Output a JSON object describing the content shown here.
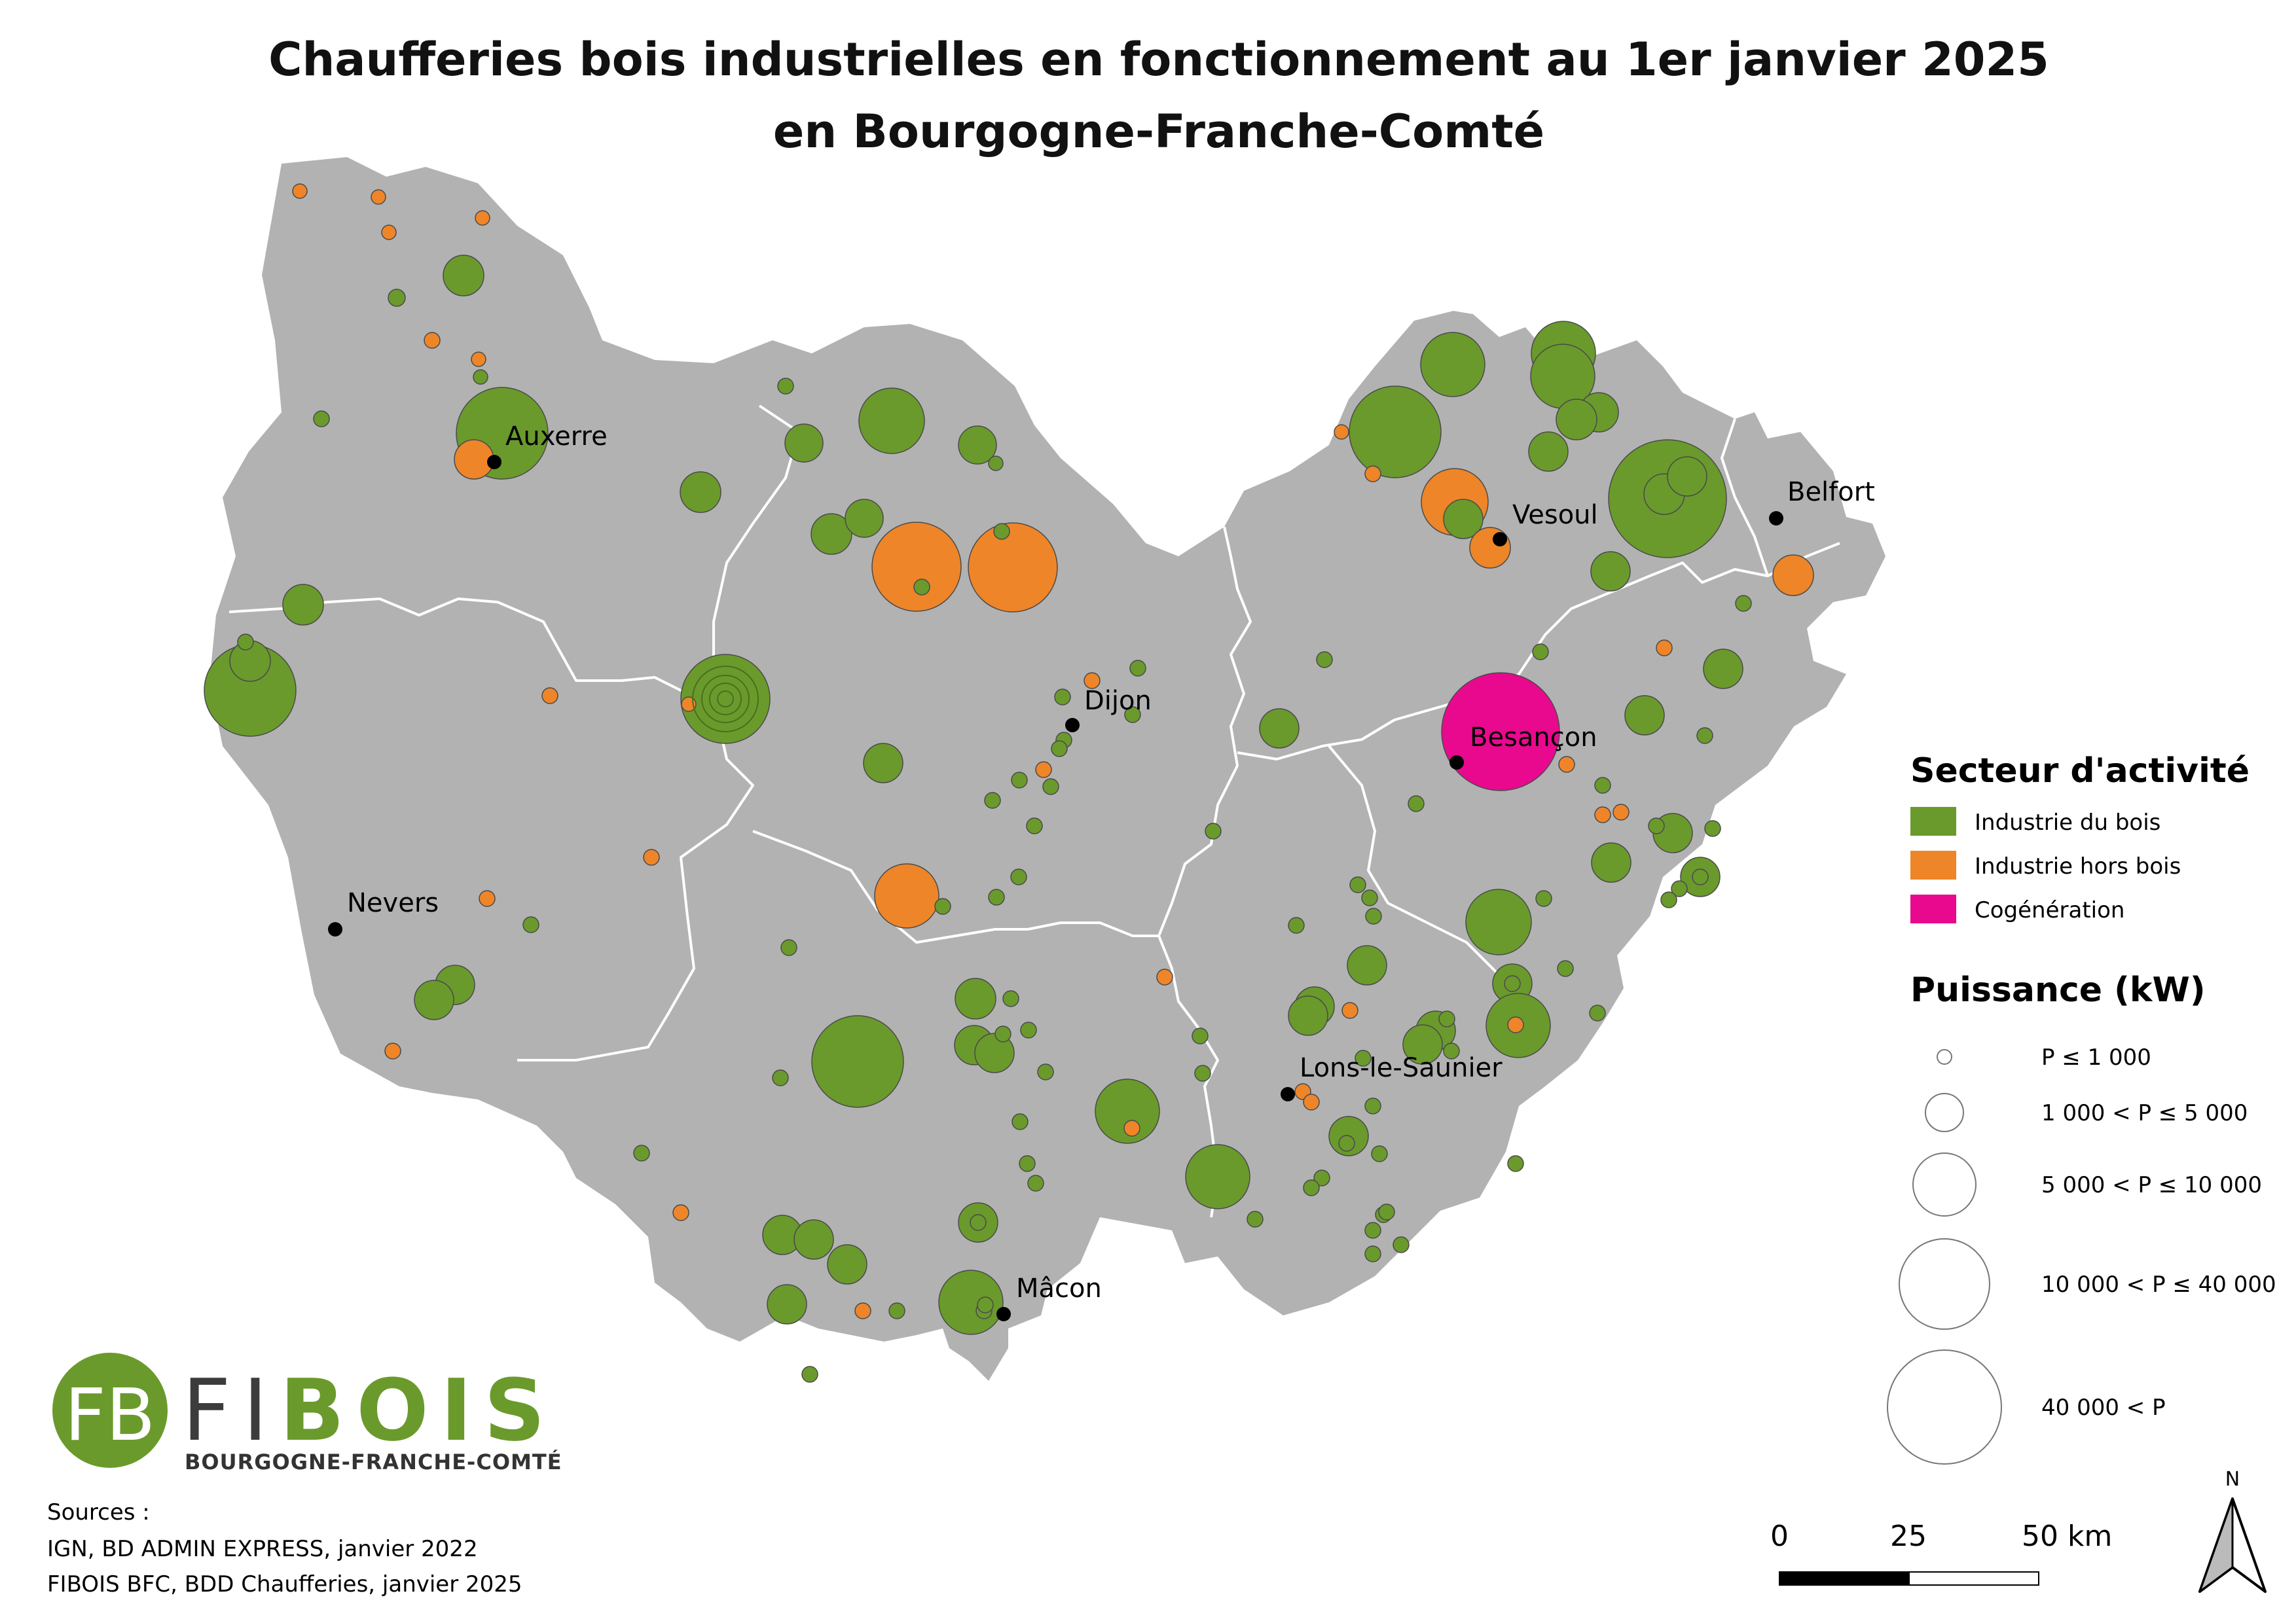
{
  "title": {
    "line1": "Chaufferies bois industrielles en fonctionnement au 1er janvier 2025",
    "line2": "en Bourgogne-Franche-Comté"
  },
  "colors": {
    "region_fill": "#b2b2b2",
    "boundary": "#ffffff",
    "industrie_bois": "#6a9a2c",
    "industrie_hors_bois": "#ee8528",
    "cogeneration": "#e8098e"
  },
  "cities": [
    {
      "name": "Auxerre"
    },
    {
      "name": "Dijon"
    },
    {
      "name": "Vesoul"
    },
    {
      "name": "Belfort"
    },
    {
      "name": "Besançon"
    },
    {
      "name": "Nevers"
    },
    {
      "name": "Lons-le-Saunier"
    },
    {
      "name": "Mâcon"
    }
  ],
  "legend": {
    "sector_title": "Secteur d'activité",
    "sectors": [
      {
        "label": "Industrie du bois"
      },
      {
        "label": "Industrie hors bois"
      },
      {
        "label": "Cogénération"
      }
    ],
    "power_title": "Puissance (kW)",
    "power_classes": [
      {
        "label": "P ≤ 1 000"
      },
      {
        "label": "1 000 < P ≤ 5 000"
      },
      {
        "label": "5 000 < P ≤ 10 000"
      },
      {
        "label": "10 000 < P ≤ 40 000"
      },
      {
        "label": "40 000 < P"
      }
    ]
  },
  "sources": {
    "heading": "Sources :",
    "line1": "IGN, BD ADMIN EXPRESS, janvier 2022",
    "line2": "FIBOIS BFC, BDD Chaufferies, janvier 2025"
  },
  "scale": {
    "t0": "0",
    "t1": "25",
    "t2": "50 km"
  },
  "north": "N",
  "logo": {
    "monogram": "FB",
    "word_a": "FI",
    "word_b": "BOIS",
    "subtitle": "BOURGOGNE-FRANCHE-COMTÉ"
  }
}
